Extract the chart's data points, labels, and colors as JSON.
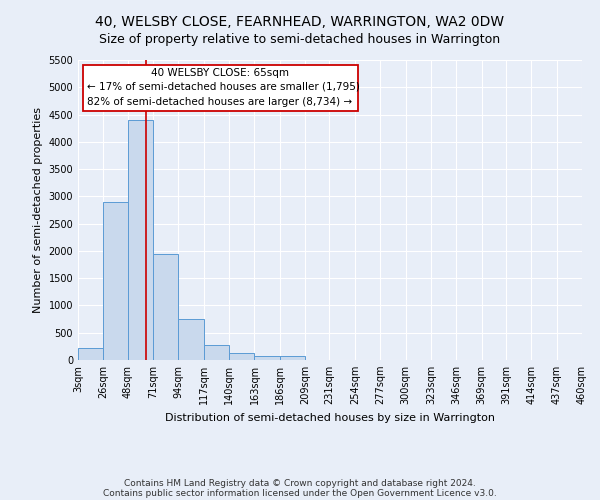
{
  "title": "40, WELSBY CLOSE, FEARNHEAD, WARRINGTON, WA2 0DW",
  "subtitle": "Size of property relative to semi-detached houses in Warrington",
  "xlabel": "Distribution of semi-detached houses by size in Warrington",
  "ylabel": "Number of semi-detached properties",
  "footnote1": "Contains HM Land Registry data © Crown copyright and database right 2024.",
  "footnote2": "Contains public sector information licensed under the Open Government Licence v3.0.",
  "bar_edges": [
    3,
    26,
    48,
    71,
    94,
    117,
    140,
    163,
    186,
    209,
    231,
    254,
    277,
    300,
    323,
    346,
    369,
    391,
    414,
    437,
    460
  ],
  "bar_heights": [
    220,
    2900,
    4400,
    1950,
    750,
    280,
    120,
    75,
    75,
    0,
    0,
    0,
    0,
    0,
    0,
    0,
    0,
    0,
    0,
    0
  ],
  "bar_color": "#c9d9ed",
  "bar_edge_color": "#5b9bd5",
  "ylim": [
    0,
    5500
  ],
  "yticks": [
    0,
    500,
    1000,
    1500,
    2000,
    2500,
    3000,
    3500,
    4000,
    4500,
    5000,
    5500
  ],
  "property_size": 65,
  "red_line_color": "#cc0000",
  "annotation_line1": "40 WELSBY CLOSE: 65sqm",
  "annotation_line2": "← 17% of semi-detached houses are smaller (1,795)",
  "annotation_line3": "82% of semi-detached houses are larger (8,734) →",
  "annotation_box_facecolor": "#ffffff",
  "annotation_box_edgecolor": "#cc0000",
  "bg_color": "#e8eef8",
  "grid_color": "#ffffff",
  "title_fontsize": 10,
  "subtitle_fontsize": 9,
  "axis_label_fontsize": 8,
  "tick_fontsize": 7,
  "annot_fontsize": 7.5,
  "footnote_fontsize": 6.5
}
